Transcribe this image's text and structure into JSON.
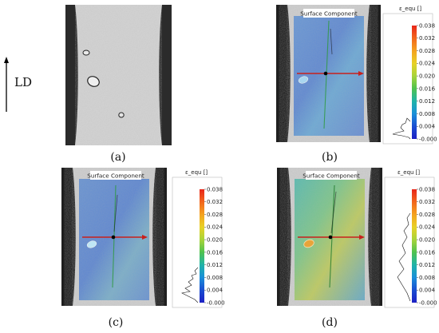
{
  "axis_label": "LD",
  "panels": [
    {
      "caption": "(a)"
    },
    {
      "caption": "(b)",
      "overlay_title": "Surface Component"
    },
    {
      "caption": "(c)",
      "overlay_title": "Surface Component"
    },
    {
      "caption": "(d)",
      "overlay_title": "Surface Component"
    }
  ],
  "colorbar": {
    "title": "ε_equ []",
    "ticks": [
      "0.038",
      "0.032",
      "0.028",
      "0.024",
      "0.020",
      "0.016",
      "0.012",
      "0.008",
      "0.004",
      "-0.000"
    ],
    "gradient_colors": [
      "#e8261a",
      "#f2661c",
      "#f4a21f",
      "#e8d126",
      "#a8d43a",
      "#4fc24e",
      "#1fb3a8",
      "#1a8fd9",
      "#1a4ed1",
      "#1c1fc4"
    ]
  }
}
